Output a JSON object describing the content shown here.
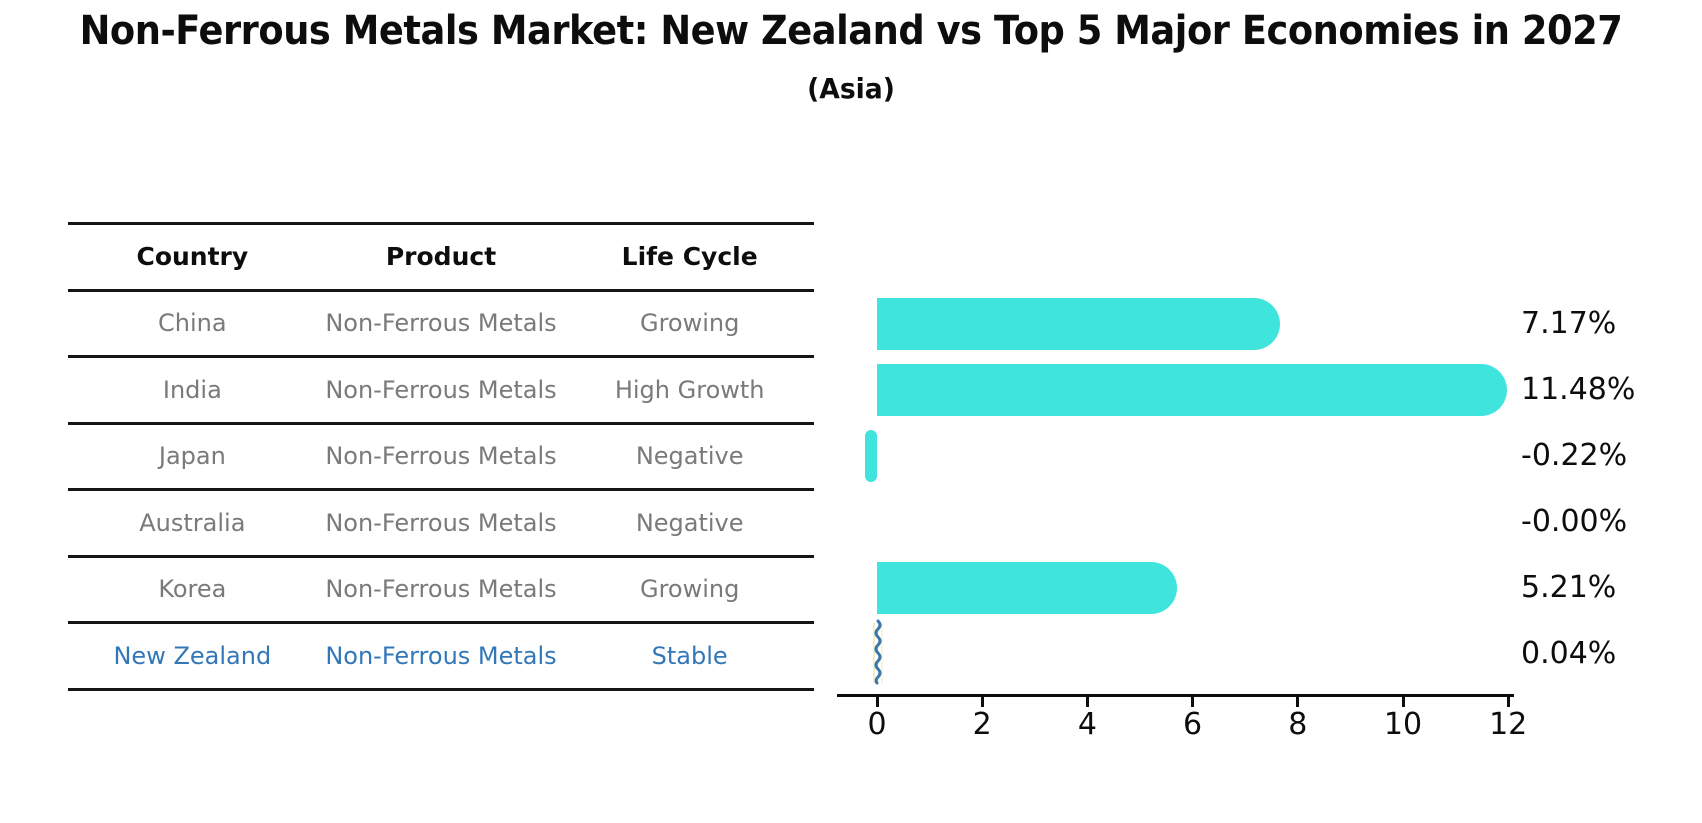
{
  "title": "Non-Ferrous Metals Market: New Zealand vs Top 5 Major Economies in 2027",
  "subtitle": "(Asia)",
  "table": {
    "headers": {
      "country": "Country",
      "product": "Product",
      "life_cycle": "Life Cycle"
    },
    "rows": [
      {
        "country": "China",
        "product": "Non-Ferrous Metals",
        "life_cycle": "Growing"
      },
      {
        "country": "India",
        "product": "Non-Ferrous Metals",
        "life_cycle": "High Growth"
      },
      {
        "country": "Japan",
        "product": "Non-Ferrous Metals",
        "life_cycle": "Negative"
      },
      {
        "country": "Australia",
        "product": "Non-Ferrous Metals",
        "life_cycle": "Negative"
      },
      {
        "country": "Korea",
        "product": "Non-Ferrous Metals",
        "life_cycle": "Growing"
      },
      {
        "country": "New Zealand",
        "product": "Non-Ferrous Metals",
        "life_cycle": "Stable"
      }
    ],
    "highlight_row": "New Zealand"
  },
  "chart_data": {
    "type": "bar",
    "orientation": "horizontal",
    "categories": [
      "China",
      "India",
      "Japan",
      "Australia",
      "Korea",
      "New Zealand"
    ],
    "values": [
      7.17,
      11.48,
      -0.22,
      -0.0,
      5.21,
      0.04
    ],
    "value_labels": [
      "7.17%",
      "11.48%",
      "-0.22%",
      "-0.00%",
      "5.21%",
      "0.04%"
    ],
    "xticks": [
      "0",
      "2",
      "4",
      "6",
      "8",
      "10",
      "12"
    ],
    "xtick_values": [
      0,
      2,
      4,
      6,
      8,
      10,
      12
    ],
    "xlim": [
      -0.8,
      12.1
    ],
    "grid": false,
    "legend": "none",
    "bar_color": "#3FE4DC",
    "highlight_color": "#3277B8",
    "highlight_index": 5,
    "title": "Non-Ferrous Metals Market: New Zealand vs Top 5 Major Economies in 2027",
    "subtitle": "(Asia)"
  }
}
